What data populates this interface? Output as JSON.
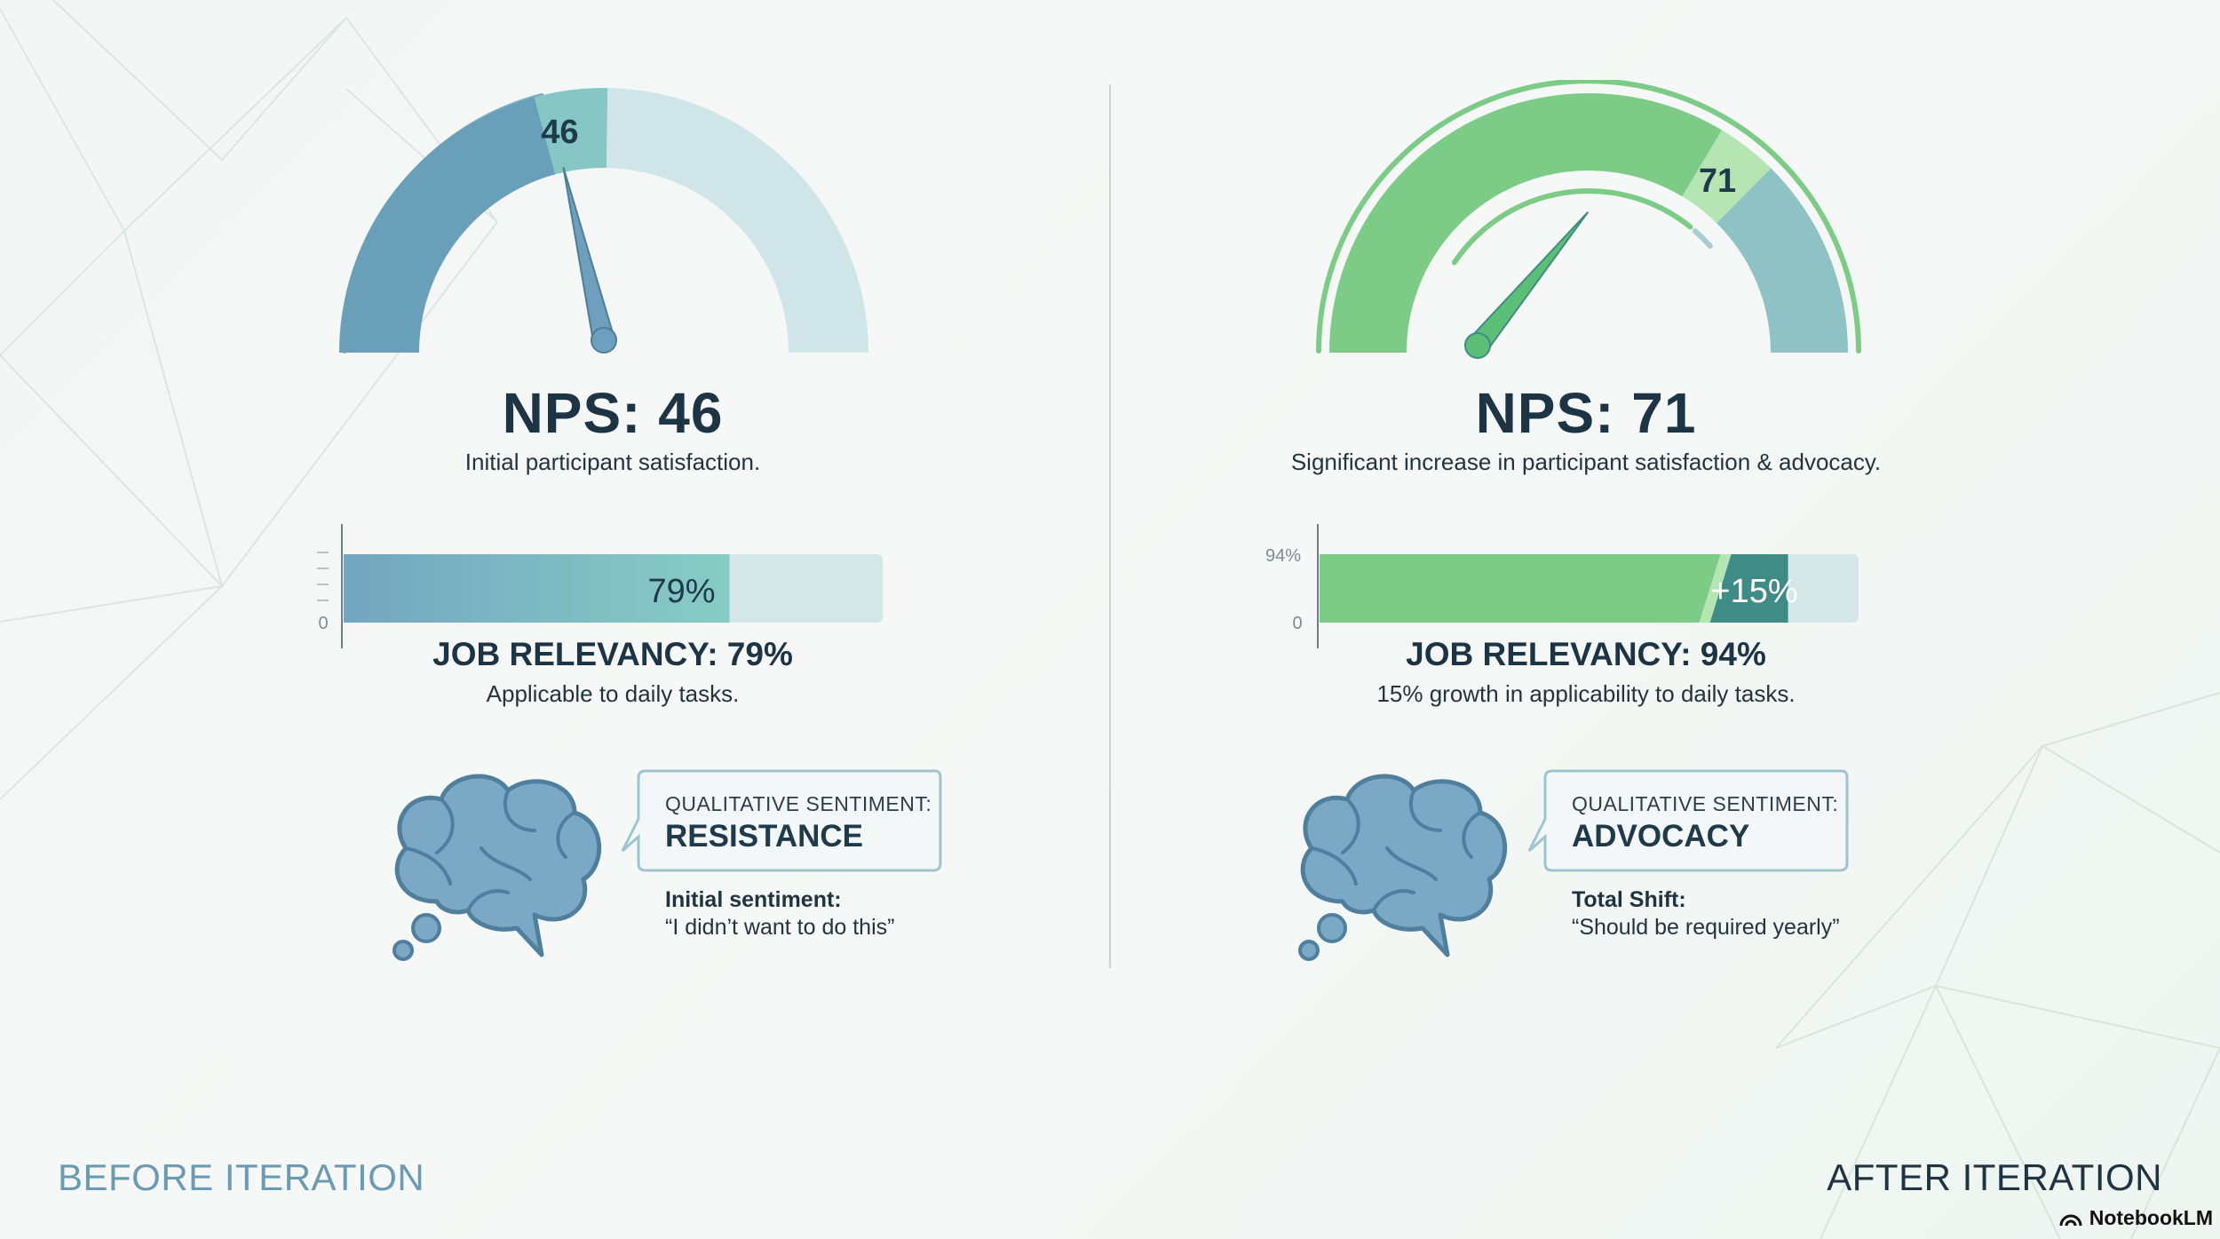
{
  "colors": {
    "before_dark": "#6a9fba",
    "before_mid": "#86c6c4",
    "before_light": "#cfe5e7",
    "after_green": "#7ccb86",
    "after_light_green": "#b4e5b2",
    "after_teal": "#8fc2c4",
    "after_dark_teal": "#3f8c86",
    "brain_fill": "#7ba8c4",
    "brain_stroke": "#4f7f9c"
  },
  "before": {
    "gauge": {
      "value": 46,
      "value_label": "46"
    },
    "nps_title": "NPS: 46",
    "nps_subtitle": "Initial participant satisfaction.",
    "bar": {
      "value_label": "79%",
      "axis_zero": "0"
    },
    "job_title": "JOB RELEVANCY: 79%",
    "job_subtitle": "Applicable to daily tasks.",
    "sentiment_label": "QUALITATIVE SENTIMENT:",
    "sentiment_value": "RESISTANCE",
    "note_label": "Initial sentiment:",
    "note_quote": "“I didn’t want to do this”",
    "corner_label": "BEFORE ITERATION"
  },
  "after": {
    "gauge": {
      "value": 71,
      "value_label": "71"
    },
    "nps_title": "NPS: 71",
    "nps_subtitle": "Significant increase in participant satisfaction & advocacy.",
    "bar": {
      "value_label": "+15%",
      "axis_top": "94%",
      "axis_zero": "0"
    },
    "job_title": "JOB RELEVANCY: 94%",
    "job_subtitle": "15% growth in applicability to daily tasks.",
    "sentiment_label": "QUALITATIVE SENTIMENT:",
    "sentiment_value": "ADVOCACY",
    "note_label": "Total Shift:",
    "note_quote": "“Should be required yearly”",
    "corner_label": "AFTER ITERATION"
  },
  "brand": {
    "name": "NotebookLM",
    "icon": "notebooklm-logo-icon"
  },
  "chart_data": [
    {
      "type": "gauge",
      "metric": "NPS",
      "value": 46,
      "range": [
        0,
        100
      ]
    },
    {
      "type": "gauge",
      "metric": "NPS",
      "value": 71,
      "range": [
        0,
        100
      ]
    },
    {
      "type": "bar",
      "metric": "Job relevancy",
      "value": 79,
      "range": [
        0,
        100
      ]
    },
    {
      "type": "bar",
      "metric": "Job relevancy",
      "value": 94,
      "baseline_value": 79,
      "increase": 15,
      "range": [
        0,
        100
      ]
    }
  ]
}
